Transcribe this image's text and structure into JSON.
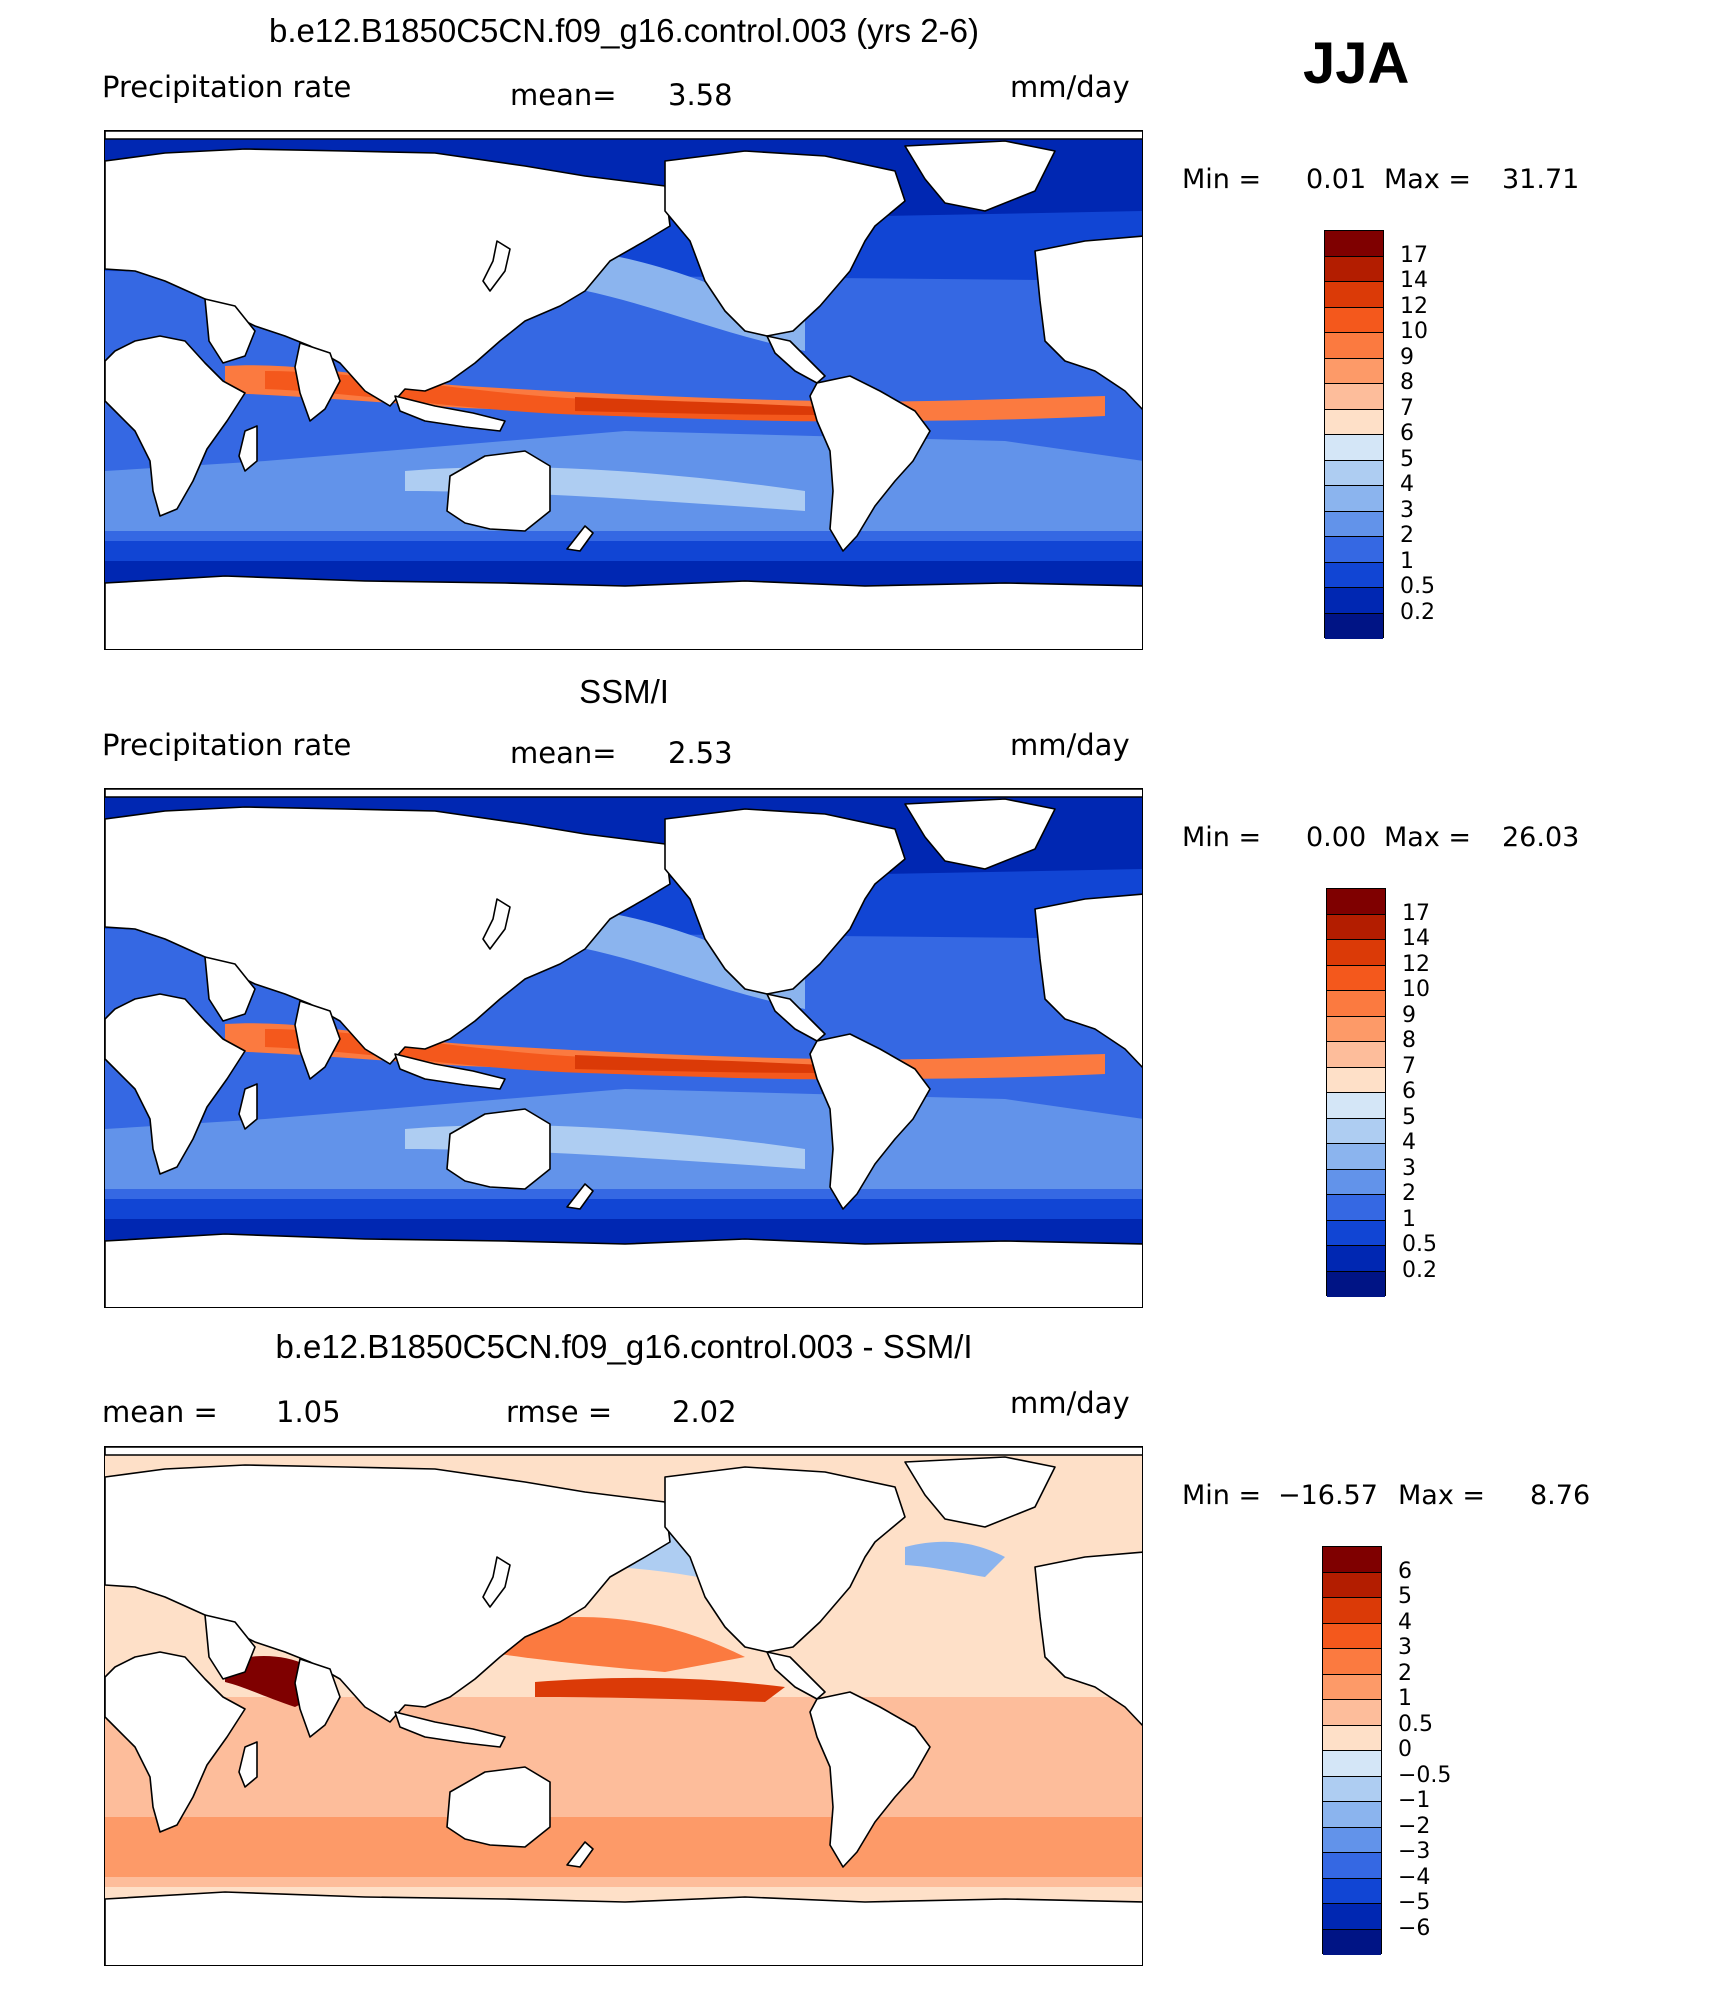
{
  "season": "JJA",
  "panels": [
    {
      "title": "b.e12.B1850C5CN.f09_g16.control.003 (yrs 2-6)",
      "left_label": "Precipitation  rate",
      "center_label": "mean=",
      "center_value": "3.58",
      "units": "mm/day",
      "min_label": "Min  =",
      "min_value": "0.01",
      "max_label": "Max  =",
      "max_value": "31.71",
      "colorbar_labels": [
        "17",
        "14",
        "12",
        "10",
        "9",
        "8",
        "7",
        "6",
        "5",
        "4",
        "3",
        "2",
        "1",
        "0.5",
        "0.2"
      ],
      "colors": [
        "#7f0000",
        "#b31d00",
        "#db3a07",
        "#f4581c",
        "#fb7a40",
        "#fd9a68",
        "#fdbd9b",
        "#fee0c8",
        "#d4e6f7",
        "#aecdf2",
        "#8bb4ee",
        "#6293ea",
        "#3568e3",
        "#1145d4",
        "#0027b2",
        "#001485"
      ]
    },
    {
      "title": "SSM/I",
      "left_label": "Precipitation  rate",
      "center_label": "mean=",
      "center_value": "2.53",
      "units": "mm/day",
      "min_label": "Min  =",
      "min_value": "0.00",
      "max_label": "Max  =",
      "max_value": "26.03",
      "colorbar_labels": [
        "17",
        "14",
        "12",
        "10",
        "9",
        "8",
        "7",
        "6",
        "5",
        "4",
        "3",
        "2",
        "1",
        "0.5",
        "0.2"
      ],
      "colors": [
        "#7f0000",
        "#b31d00",
        "#db3a07",
        "#f4581c",
        "#fb7a40",
        "#fd9a68",
        "#fdbd9b",
        "#fee0c8",
        "#d4e6f7",
        "#aecdf2",
        "#8bb4ee",
        "#6293ea",
        "#3568e3",
        "#1145d4",
        "#0027b2",
        "#001485"
      ]
    },
    {
      "title": "b.e12.B1850C5CN.f09_g16.control.003 - SSM/I",
      "left_label": "mean  =",
      "left_value": "1.05",
      "center_label": "rmse  =",
      "center_value": "2.02",
      "units": "mm/day",
      "min_label": "Min  =",
      "min_value": "−16.57",
      "max_label": "Max  =",
      "max_value": "8.76",
      "colorbar_labels": [
        "6",
        "5",
        "4",
        "3",
        "2",
        "1",
        "0.5",
        "0",
        "−0.5",
        "−1",
        "−2",
        "−3",
        "−4",
        "−5",
        "−6"
      ],
      "colors": [
        "#7f0000",
        "#b31d00",
        "#db3a07",
        "#f4581c",
        "#fb7a40",
        "#fd9a68",
        "#fdbd9b",
        "#fee0c8",
        "#d4e6f7",
        "#aecdf2",
        "#8bb4ee",
        "#6293ea",
        "#3568e3",
        "#1145d4",
        "#0027b2",
        "#001485"
      ]
    }
  ]
}
